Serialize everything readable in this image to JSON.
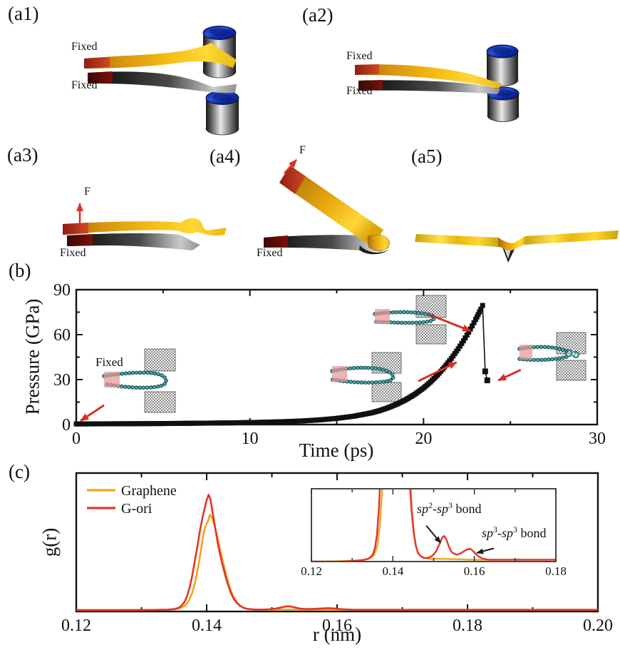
{
  "panel_a": {
    "a1": {
      "label": "(a1)",
      "fixed_top": "Fixed",
      "fixed_bottom": "Fixed"
    },
    "a2": {
      "label": "(a2)",
      "fixed_top": "Fixed",
      "fixed_bottom": "Fixed"
    },
    "a3": {
      "label": "(a3)",
      "force_label": "F",
      "fixed_label": "Fixed"
    },
    "a4": {
      "label": "(a4)",
      "force_label": "F",
      "fixed_label": "Fixed"
    },
    "a5": {
      "label": "(a5)"
    }
  },
  "panel_b": {
    "label": "(b)"
  },
  "panel_c": {
    "label": "(c)"
  },
  "colors": {
    "accent_red_arrow": "#D93025",
    "curve_black": "#101010",
    "graphene_orange": "#F1A51C",
    "gori_red": "#E3342C",
    "fixed_pink": "#E59797",
    "chain_teal": "#2F7F82"
  },
  "chart_data": [
    {
      "id": "pressure-time",
      "type": "scatter",
      "xlabel": "Time (ps)",
      "ylabel": "Pressure (GPa)",
      "fixed_label": "Fixed",
      "xlim": [
        0,
        30
      ],
      "ylim": [
        0,
        90
      ],
      "xticks": [
        0,
        10,
        20,
        30
      ],
      "xtick_labels": [
        "0",
        "10",
        "20",
        "30"
      ],
      "yticks": [
        0,
        30,
        60,
        90
      ],
      "ytick_labels": [
        "0",
        "30",
        "60",
        "90"
      ],
      "xminor": 5,
      "yminor": 15,
      "marker": "square",
      "color": "#101010",
      "series": [
        {
          "name": "loading",
          "points": [
            [
              0,
              0.4
            ],
            [
              1,
              0.45
            ],
            [
              2,
              0.5
            ],
            [
              3,
              0.55
            ],
            [
              4,
              0.6
            ],
            [
              5,
              0.68
            ],
            [
              6,
              0.78
            ],
            [
              7,
              0.9
            ],
            [
              8,
              1.0
            ],
            [
              9,
              1.15
            ],
            [
              10,
              1.35
            ],
            [
              11,
              1.6
            ],
            [
              12,
              1.95
            ],
            [
              13,
              2.4
            ],
            [
              14,
              3.1
            ],
            [
              15,
              4.1
            ],
            [
              16,
              5.6
            ],
            [
              17,
              7.8
            ],
            [
              17.5,
              9.4
            ],
            [
              18,
              11.4
            ],
            [
              18.5,
              13.8
            ],
            [
              19,
              16.7
            ],
            [
              19.5,
              20.2
            ],
            [
              20,
              24.4
            ],
            [
              20.4,
              28.4
            ],
            [
              20.8,
              33.0
            ],
            [
              21.2,
              38.2
            ],
            [
              21.6,
              44.1
            ],
            [
              22,
              50.6
            ],
            [
              22.3,
              55.9
            ],
            [
              22.6,
              61.7
            ],
            [
              22.8,
              65.8
            ],
            [
              23,
              70.1
            ],
            [
              23.15,
              73.5
            ],
            [
              23.3,
              77.0
            ],
            [
              23.4,
              79.5
            ]
          ]
        },
        {
          "name": "after-rupture",
          "points": [
            [
              23.55,
              35.5
            ],
            [
              23.67,
              29.5
            ]
          ]
        }
      ],
      "arrows": [
        {
          "from": [
            1.6,
            12.9
          ],
          "to": [
            0.25,
            2.5
          ]
        },
        {
          "from": [
            19.7,
            29.0
          ],
          "to": [
            21.9,
            41.5
          ]
        },
        {
          "from": [
            20.3,
            73.5
          ],
          "to": [
            22.7,
            62.5
          ]
        },
        {
          "from": [
            25.6,
            36.5
          ],
          "to": [
            24.3,
            29.5
          ]
        }
      ]
    },
    {
      "id": "rdf",
      "type": "line",
      "xlabel": "r (nm)",
      "ylabel": "g(r)",
      "xlim": [
        0.12,
        0.2
      ],
      "ylim": [
        0,
        1
      ],
      "xticks": [
        0.12,
        0.14,
        0.16,
        0.18,
        0.2
      ],
      "xtick_labels": [
        "0.12",
        "0.14",
        "0.16",
        "0.18",
        "0.20"
      ],
      "xminor": 0.01,
      "legend": [
        {
          "label": "Graphene",
          "color": "#F1A51C"
        },
        {
          "label": "G-ori",
          "color": "#E3342C"
        }
      ],
      "series": [
        {
          "name": "Graphene",
          "color": "#F1A51C",
          "points": [
            [
              0.12,
              0
            ],
            [
              0.125,
              0
            ],
            [
              0.13,
              0.001
            ],
            [
              0.133,
              0.002
            ],
            [
              0.1345,
              0.004
            ],
            [
              0.1355,
              0.008
            ],
            [
              0.1362,
              0.018
            ],
            [
              0.1368,
              0.04
            ],
            [
              0.1373,
              0.075
            ],
            [
              0.1378,
              0.13
            ],
            [
              0.1383,
              0.22
            ],
            [
              0.1388,
              0.35
            ],
            [
              0.1392,
              0.47
            ],
            [
              0.1395,
              0.565
            ],
            [
              0.1398,
              0.62
            ],
            [
              0.14,
              0.645
            ],
            [
              0.1402,
              0.66
            ],
            [
              0.1405,
              0.71
            ],
            [
              0.1408,
              0.69
            ],
            [
              0.1412,
              0.635
            ],
            [
              0.1416,
              0.555
            ],
            [
              0.142,
              0.465
            ],
            [
              0.1425,
              0.36
            ],
            [
              0.143,
              0.26
            ],
            [
              0.1435,
              0.175
            ],
            [
              0.144,
              0.11
            ],
            [
              0.1446,
              0.06
            ],
            [
              0.1452,
              0.03
            ],
            [
              0.1458,
              0.014
            ],
            [
              0.1465,
              0.007
            ],
            [
              0.1475,
              0.004
            ],
            [
              0.149,
              0.003
            ],
            [
              0.152,
              0.003
            ],
            [
              0.156,
              0.0025
            ],
            [
              0.16,
              0.002
            ],
            [
              0.17,
              0.002
            ],
            [
              0.18,
              0.002
            ],
            [
              0.19,
              0.002
            ],
            [
              0.2,
              0.002
            ]
          ]
        },
        {
          "name": "G-ori",
          "color": "#E3342C",
          "points": [
            [
              0.12,
              0
            ],
            [
              0.128,
              0
            ],
            [
              0.132,
              0.001
            ],
            [
              0.134,
              0.003
            ],
            [
              0.135,
              0.007
            ],
            [
              0.1356,
              0.015
            ],
            [
              0.1361,
              0.03
            ],
            [
              0.1366,
              0.06
            ],
            [
              0.137,
              0.105
            ],
            [
              0.1374,
              0.17
            ],
            [
              0.1378,
              0.26
            ],
            [
              0.1382,
              0.37
            ],
            [
              0.1386,
              0.48
            ],
            [
              0.139,
              0.6
            ],
            [
              0.1394,
              0.7
            ],
            [
              0.1397,
              0.76
            ],
            [
              0.14,
              0.82
            ],
            [
              0.1403,
              0.86
            ],
            [
              0.1406,
              0.82
            ],
            [
              0.1409,
              0.73
            ],
            [
              0.1413,
              0.615
            ],
            [
              0.1417,
              0.5
            ],
            [
              0.1421,
              0.405
            ],
            [
              0.1425,
              0.325
            ],
            [
              0.1429,
              0.25
            ],
            [
              0.1433,
              0.185
            ],
            [
              0.1437,
              0.13
            ],
            [
              0.1441,
              0.088
            ],
            [
              0.1446,
              0.055
            ],
            [
              0.1451,
              0.032
            ],
            [
              0.1456,
              0.018
            ],
            [
              0.1461,
              0.01
            ],
            [
              0.1468,
              0.006
            ],
            [
              0.1476,
              0.004
            ],
            [
              0.1486,
              0.004
            ],
            [
              0.1496,
              0.006
            ],
            [
              0.1506,
              0.011
            ],
            [
              0.1514,
              0.019
            ],
            [
              0.1521,
              0.0265
            ],
            [
              0.1526,
              0.028
            ],
            [
              0.1531,
              0.0245
            ],
            [
              0.1537,
              0.017
            ],
            [
              0.1543,
              0.011
            ],
            [
              0.155,
              0.0085
            ],
            [
              0.1558,
              0.0075
            ],
            [
              0.1566,
              0.009
            ],
            [
              0.1575,
              0.0115
            ],
            [
              0.1583,
              0.0135
            ],
            [
              0.159,
              0.014
            ],
            [
              0.1597,
              0.0115
            ],
            [
              0.1604,
              0.008
            ],
            [
              0.1612,
              0.005
            ],
            [
              0.1622,
              0.003
            ],
            [
              0.1635,
              0.002
            ],
            [
              0.166,
              0.002
            ],
            [
              0.172,
              0.002
            ],
            [
              0.18,
              0.002
            ],
            [
              0.19,
              0.002
            ],
            [
              0.2,
              0.002
            ]
          ]
        }
      ],
      "inset": {
        "xlim": [
          0.12,
          0.18
        ],
        "ylim": [
          0,
          0.08
        ],
        "xticks": [
          0.12,
          0.14,
          0.16,
          0.18
        ],
        "xtick_labels": [
          "0.12",
          "0.14",
          "0.16",
          "0.18"
        ],
        "xminor": 0.01,
        "annotations": [
          {
            "text_parts": {
              "p1": "sp",
              "s1": "2",
              "p2": "-sp",
              "s2": "3",
              "p3": " bond"
            },
            "arrow_from": [
              0.1482,
              0.0395
            ],
            "arrow_to": [
              0.1517,
              0.0205
            ]
          },
          {
            "text_parts": {
              "p1": "sp",
              "s1": "3",
              "p2": "-sp",
              "s2": "3",
              "p3": " bond"
            },
            "arrow_from": [
              0.1648,
              0.0145
            ],
            "arrow_to": [
              0.1606,
              0.0095
            ]
          }
        ]
      }
    }
  ]
}
